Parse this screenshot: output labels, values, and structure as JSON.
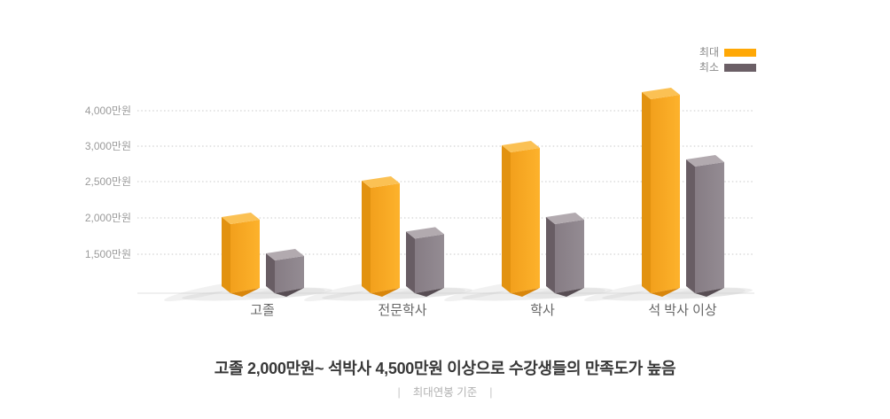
{
  "page": {
    "background": "#FFFFFF"
  },
  "legend": {
    "items": [
      {
        "label": "최대",
        "color": "#FFA806"
      },
      {
        "label": "최소",
        "color": "#6B5F66"
      }
    ]
  },
  "chart_data": {
    "type": "bar",
    "title": "",
    "categories": [
      "고졸",
      "전문학사",
      "학사",
      "석 박사 이상"
    ],
    "series": [
      {
        "name": "최대",
        "values": [
          2000,
          2500,
          3000,
          4500
        ],
        "colors": {
          "front_light": "#FDB22C",
          "front_dark": "#F2A01C",
          "side": "#E29210",
          "top": "#FBC154",
          "bottom": "#D8860C"
        }
      },
      {
        "name": "최소",
        "values": [
          1500,
          1800,
          2000,
          2800
        ],
        "colors": {
          "front_light": "#948C93",
          "front_dark": "#867C84",
          "side": "#685D64",
          "top": "#B2AAAF",
          "bottom": "#574D53"
        }
      }
    ],
    "unit": "만원",
    "y_ticks": [
      {
        "value": 4000,
        "label": "4,000만원"
      },
      {
        "value": 3000,
        "label": "3,000만원"
      },
      {
        "value": 2500,
        "label": "2,500만원"
      },
      {
        "value": 2000,
        "label": "2,000만원"
      },
      {
        "value": 1500,
        "label": "1,500만원"
      }
    ],
    "y_axis_nonlinear": true,
    "grid": "dotted-horizontal",
    "legend_position": "top-right",
    "grid_color": "#C9C9C9",
    "baseline_color": "#EBEBEB"
  },
  "footer": {
    "headline": "고졸 2,000만원~ 석박사 4,500만원 이상으로 수강생들의 만족도가 높음",
    "caption": "최대연봉 기준",
    "caption_delimiter": "|"
  }
}
